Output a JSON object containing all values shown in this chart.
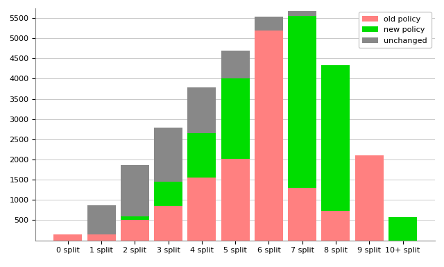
{
  "categories": [
    "0 split",
    "1 split",
    "2 split",
    "3 split",
    "4 split",
    "5 split",
    "6 split",
    "7 split",
    "8 split",
    "9 split",
    "10+ split"
  ],
  "old_policy": [
    150,
    150,
    500,
    850,
    1550,
    2020,
    5200,
    1300,
    730,
    2100,
    0
  ],
  "new_policy": [
    0,
    0,
    90,
    600,
    1100,
    1980,
    0,
    4250,
    3600,
    0,
    570
  ],
  "unchanged": [
    0,
    720,
    1270,
    1340,
    1130,
    700,
    340,
    120,
    0,
    0,
    0
  ],
  "old_policy_color": "#FF8080",
  "new_policy_color": "#00DD00",
  "unchanged_color": "#888888",
  "legend_labels": [
    "old policy",
    "new policy",
    "unchanged"
  ],
  "ylim": [
    0,
    5750
  ],
  "yticks": [
    500,
    1000,
    1500,
    2000,
    2500,
    3000,
    3500,
    4000,
    4500,
    5000,
    5500
  ],
  "background_color": "#FFFFFF",
  "grid_color": "#C8C8C8"
}
